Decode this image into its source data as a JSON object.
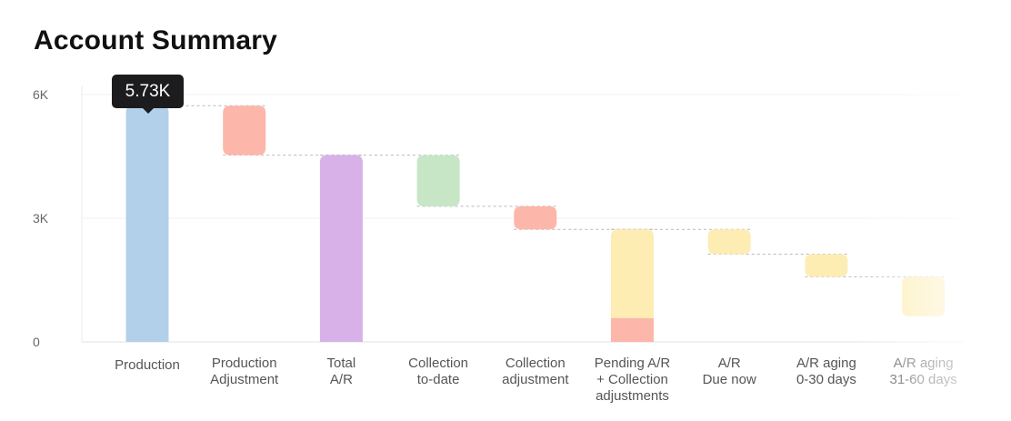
{
  "chart_data": {
    "type": "waterfall",
    "title": "Account Summary",
    "ylim": [
      0,
      6000
    ],
    "yticks": [
      {
        "value": 0,
        "label": "0"
      },
      {
        "value": 3000,
        "label": "3K"
      },
      {
        "value": 6000,
        "label": "6K"
      }
    ],
    "tooltip": {
      "category_index": 0,
      "label": "5.73K"
    },
    "categories": [
      {
        "label": [
          "Production"
        ],
        "kind": "total",
        "start": 0,
        "end": 5730,
        "color": "#b3d0ea"
      },
      {
        "label": [
          "Production",
          "Adjustment"
        ],
        "kind": "delta",
        "start": 5730,
        "end": 4530,
        "color": "#fdb6aa"
      },
      {
        "label": [
          "Total",
          "A/R"
        ],
        "kind": "total",
        "start": 0,
        "end": 4530,
        "color": "#d7b1e8"
      },
      {
        "label": [
          "Collection",
          "to-date"
        ],
        "kind": "delta",
        "start": 4530,
        "end": 3290,
        "color": "#c6e6c6"
      },
      {
        "label": [
          "Collection",
          "adjustment"
        ],
        "kind": "delta",
        "start": 3290,
        "end": 2730,
        "color": "#fdb6aa"
      },
      {
        "label": [
          "Pending A/R",
          "+ Collection",
          "adjustments"
        ],
        "kind": "stacked",
        "segments": [
          {
            "start": 0,
            "end": 580,
            "color": "#fdb6aa"
          },
          {
            "start": 580,
            "end": 2730,
            "color": "#fdedb3"
          }
        ],
        "end": 2730
      },
      {
        "label": [
          "A/R",
          "Due now"
        ],
        "kind": "delta",
        "start": 2730,
        "end": 2130,
        "color": "#fdedb3"
      },
      {
        "label": [
          "A/R aging",
          "0-30 days"
        ],
        "kind": "delta",
        "start": 2130,
        "end": 1580,
        "color": "#fdedb3"
      },
      {
        "label": [
          "A/R aging",
          "31-60 days"
        ],
        "kind": "delta",
        "start": 1580,
        "end": 620,
        "color": "#fdedb3"
      }
    ]
  }
}
